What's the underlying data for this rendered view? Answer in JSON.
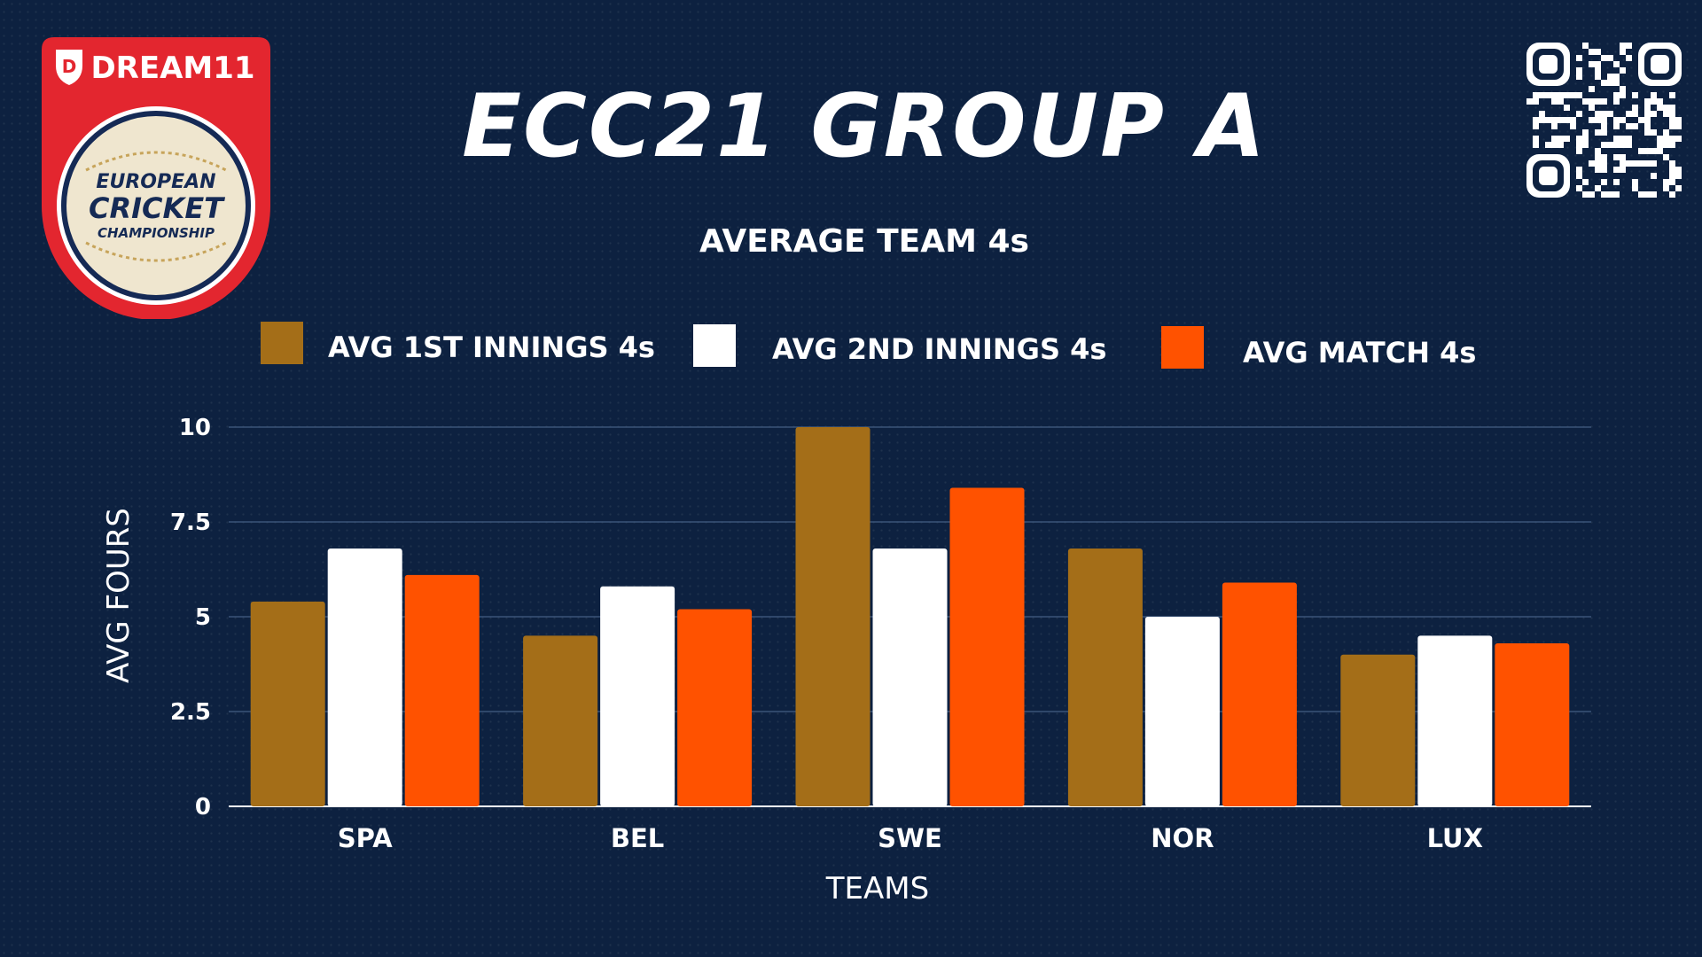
{
  "header": {
    "title": "ECC21 GROUP A"
  },
  "logo": {
    "brand": "DREAM11",
    "line1": "EUROPEAN",
    "line2": "CRICKET",
    "line3": "CHAMPIONSHIP",
    "colors": {
      "red": "#e3262f",
      "navy": "#152a55",
      "cream": "#efe6cf"
    }
  },
  "qr_code": {
    "icon": "qr-code-icon"
  },
  "chart_data": {
    "type": "bar",
    "title": "AVERAGE TEAM 4s",
    "xlabel": "TEAMS",
    "ylabel": "AVG FOURS",
    "categories": [
      "SPA",
      "BEL",
      "SWE",
      "NOR",
      "LUX"
    ],
    "series": [
      {
        "name": "AVG 1ST INNINGS 4s",
        "color": "#a46e18",
        "values": [
          5.4,
          4.5,
          10.0,
          6.8,
          4.0
        ]
      },
      {
        "name": "AVG 2ND INNINGS 4s",
        "color": "#ffffff",
        "values": [
          6.8,
          5.8,
          6.8,
          5.0,
          4.5
        ]
      },
      {
        "name": "AVG MATCH 4s",
        "color": "#ff5200",
        "values": [
          6.1,
          5.2,
          8.4,
          5.9,
          4.3
        ]
      }
    ],
    "ylim": [
      0,
      10
    ],
    "yticks": [
      "0",
      "2.5",
      "5",
      "7.5",
      "10"
    ],
    "grid": true,
    "legend_position": "top"
  }
}
